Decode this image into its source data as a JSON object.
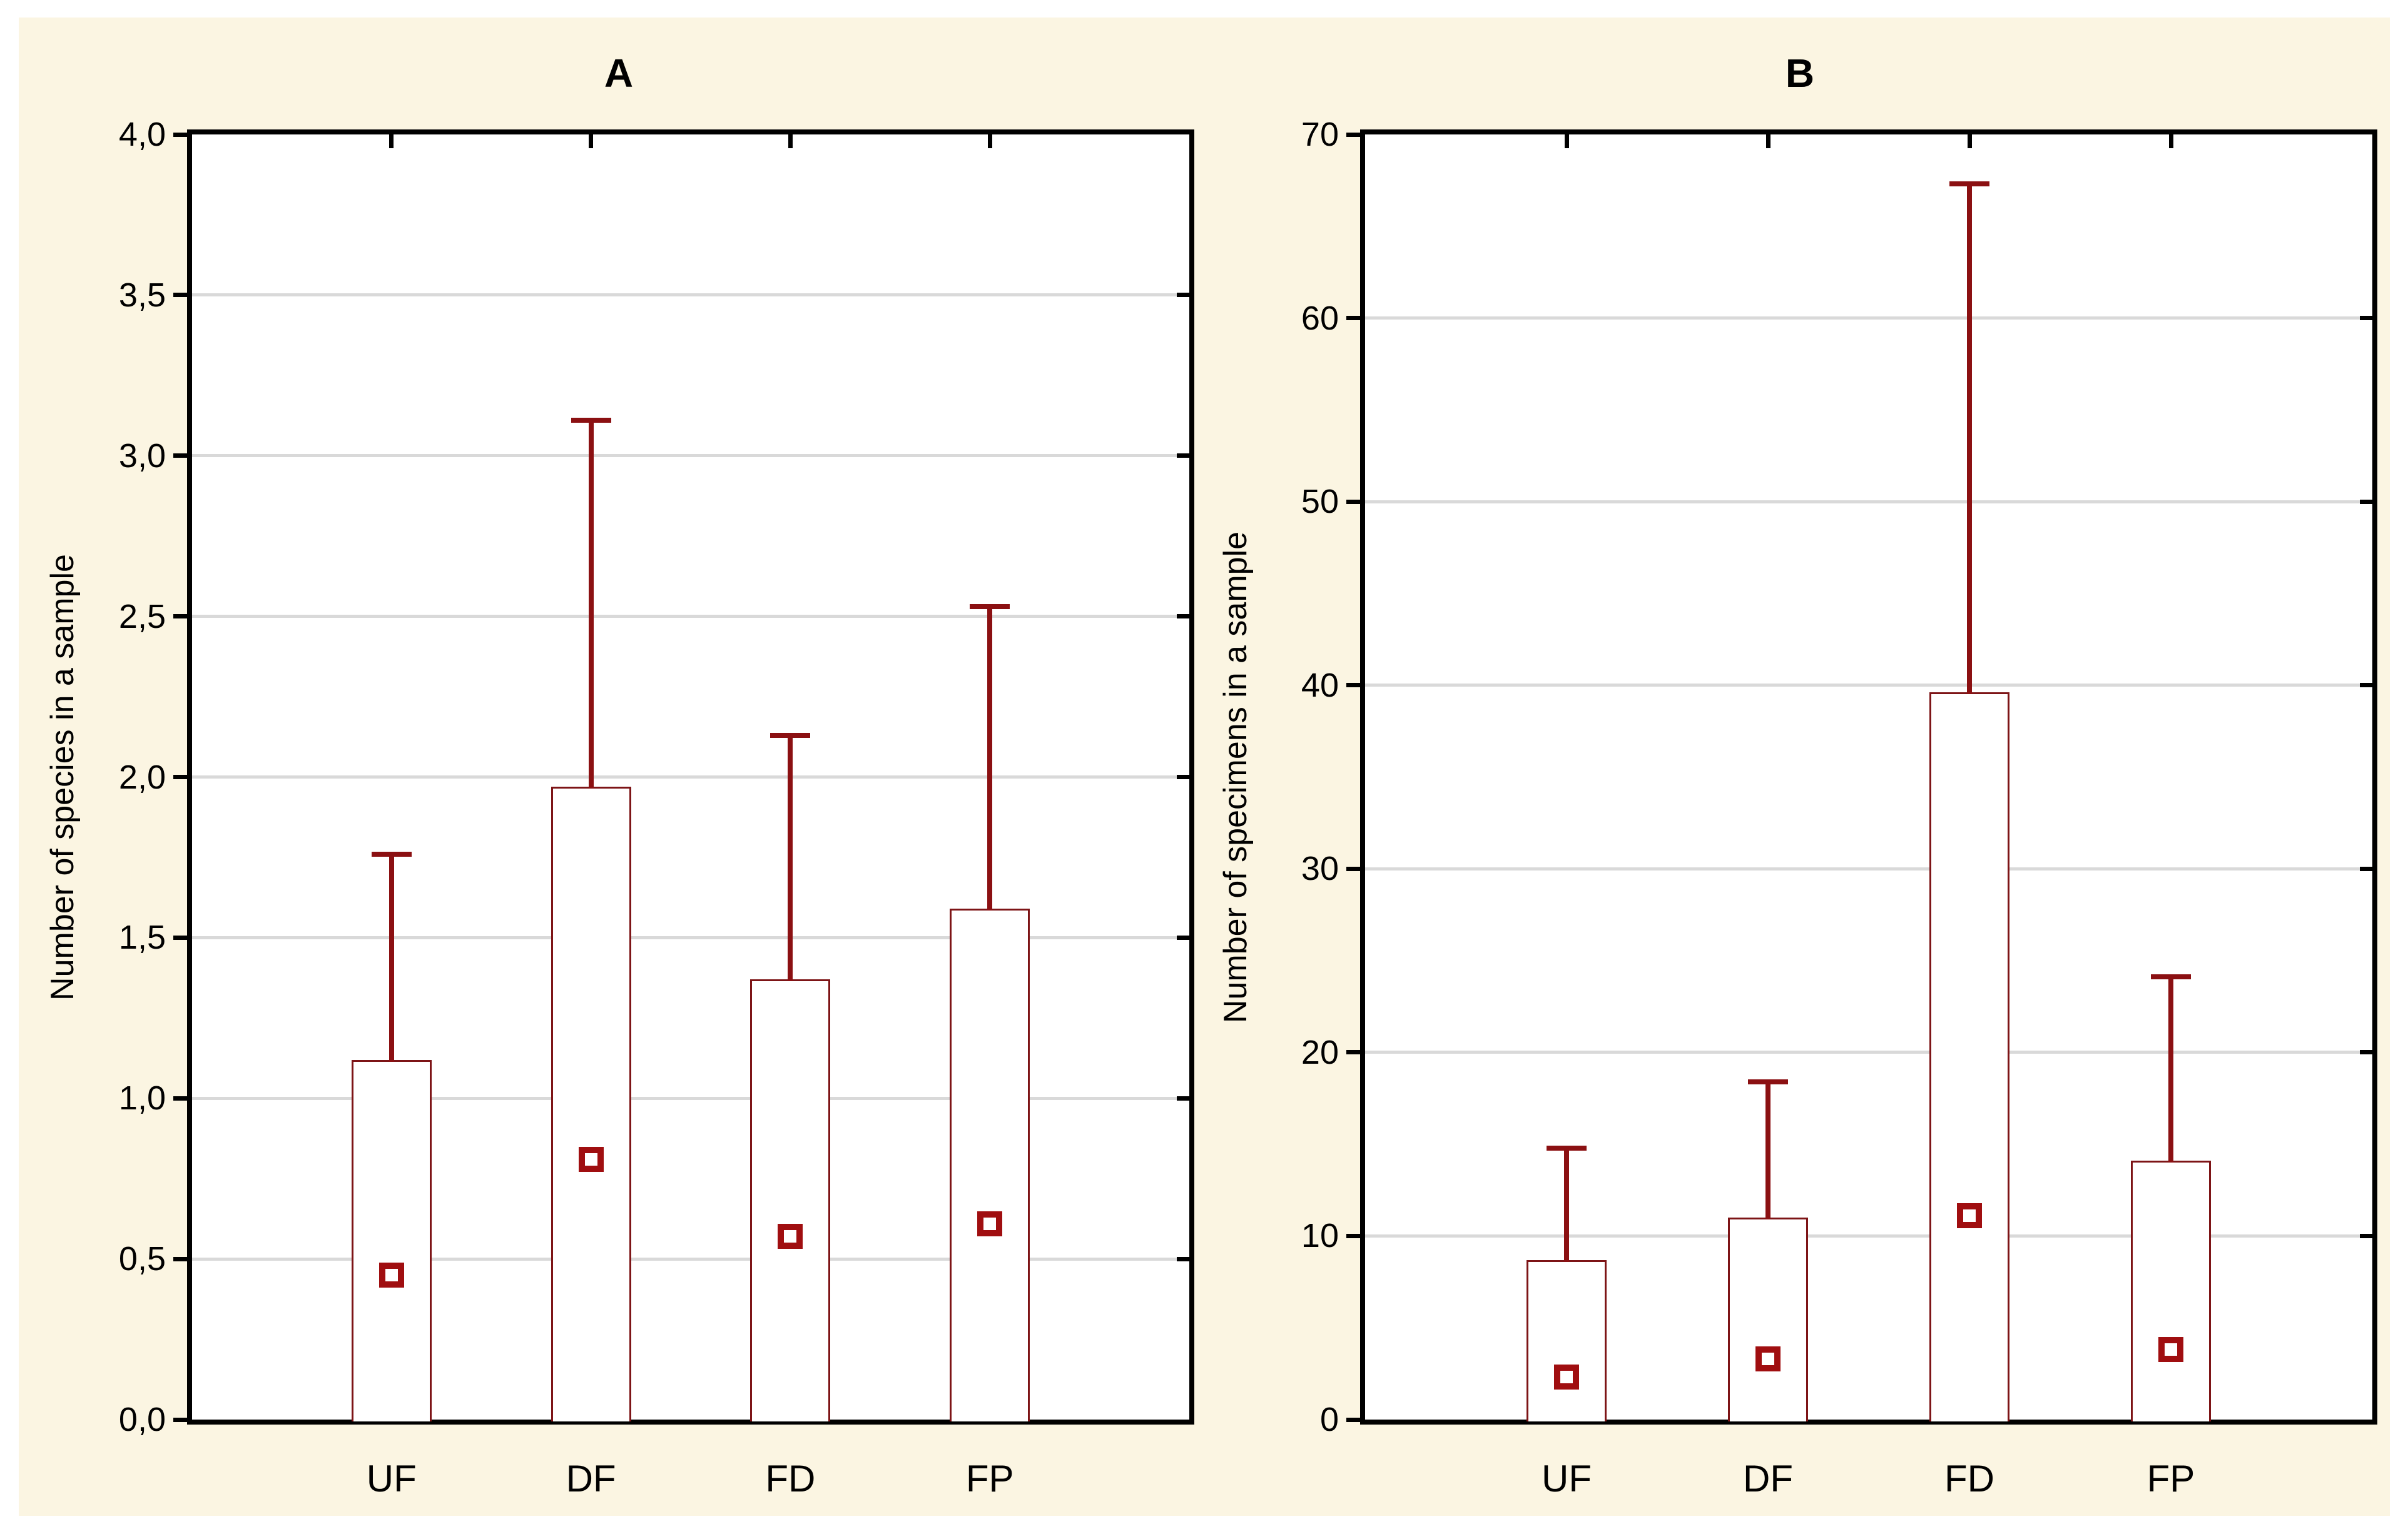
{
  "page": {
    "background": "#FFFFFF",
    "figure_background": "#FBF5E2"
  },
  "colors": {
    "axis": "#000000",
    "gridline": "#D9D9D9",
    "bar_fill": "#FFFFFF",
    "bar_outline": "#7D1416",
    "whisker": "#8B1012",
    "marker_outline": "#A00E10",
    "text": "#000000"
  },
  "chart_data": [
    {
      "type": "bar",
      "title": "A",
      "ylabel": "Number of species in a sample",
      "xlabel": "",
      "categories": [
        "UF",
        "DF",
        "FD",
        "FP"
      ],
      "series": [
        {
          "name": "bar-mean",
          "values": [
            1.12,
            1.97,
            1.37,
            1.59
          ]
        },
        {
          "name": "whisker-top",
          "values": [
            1.76,
            3.11,
            2.13,
            2.53
          ]
        },
        {
          "name": "square-marker",
          "values": [
            0.45,
            0.81,
            0.57,
            0.61
          ]
        }
      ],
      "ylim": [
        0,
        4.0
      ],
      "ytick_step": 0.5,
      "ytick_labels": [
        "4,0",
        "3,5",
        "3,0",
        "2,5",
        "2,0",
        "1,5",
        "1,0",
        "0,5",
        "0,0"
      ],
      "grid": "horizontal",
      "legend": "none"
    },
    {
      "type": "bar",
      "title": "B",
      "ylabel": "Number of specimens in a sample",
      "xlabel": "",
      "categories": [
        "UF",
        "DF",
        "FD",
        "FP"
      ],
      "series": [
        {
          "name": "bar-mean",
          "values": [
            8.7,
            11.0,
            39.6,
            14.1
          ]
        },
        {
          "name": "whisker-top",
          "values": [
            14.8,
            18.4,
            67.3,
            24.1
          ]
        },
        {
          "name": "square-marker",
          "values": [
            2.3,
            3.3,
            11.1,
            3.8
          ]
        }
      ],
      "ylim": [
        0,
        70
      ],
      "ytick_step": 10,
      "ytick_labels": [
        "70",
        "60",
        "50",
        "40",
        "30",
        "20",
        "10",
        "0"
      ],
      "grid": "horizontal",
      "legend": "none"
    }
  ]
}
